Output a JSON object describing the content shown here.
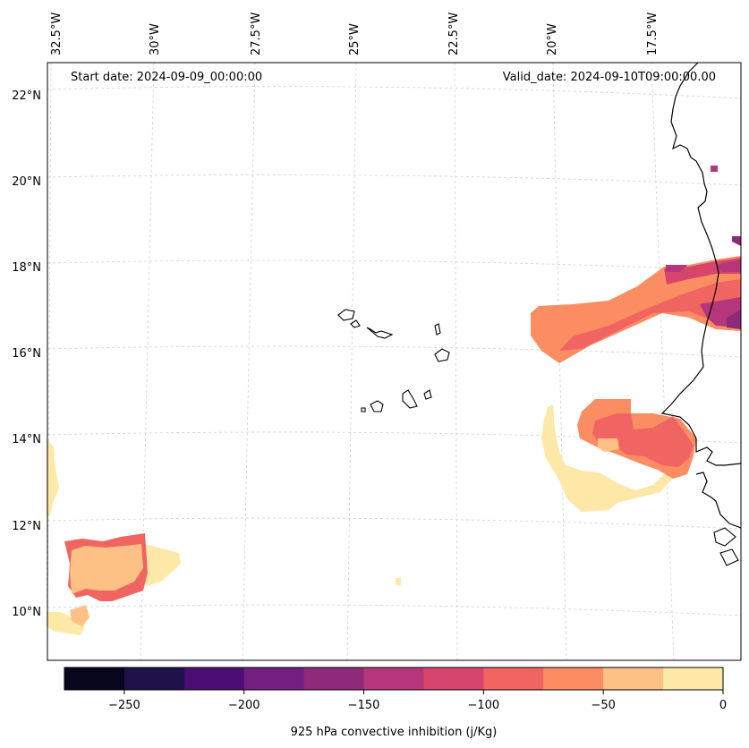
{
  "annotations": {
    "start_date": "Start date: 2024-09-09_00:00:00",
    "valid_date": "Valid_date: 2024-09-10T09:00:00.00"
  },
  "lon_labels": [
    "32.5°W",
    "30°W",
    "27.5°W",
    "25°W",
    "22.5°W",
    "20°W",
    "17.5°W"
  ],
  "lat_labels": [
    "22°N",
    "20°N",
    "18°N",
    "16°N",
    "14°N",
    "12°N",
    "10°N"
  ],
  "colorbar": {
    "label": "925 hPa convective inhibition (j/Kg)",
    "tick_labels": [
      "−250",
      "−200",
      "−150",
      "−100",
      "−50",
      "0"
    ],
    "tick_values": [
      -250,
      -200,
      -150,
      -100,
      -50,
      0
    ],
    "min": -275,
    "max": 0,
    "step": 25,
    "colors": [
      "#07061c",
      "#1f1147",
      "#4b0f73",
      "#721f81",
      "#8f2a7b",
      "#b5367a",
      "#d6456c",
      "#f06461",
      "#fb8d63",
      "#fec185",
      "#fde8a7"
    ]
  },
  "chart_data": {
    "type": "map",
    "variable": "925 hPa convective inhibition",
    "units": "j/Kg",
    "lon_range": [
      -33,
      -15.3
    ],
    "lat_range": [
      9,
      22.8
    ],
    "filled_regions": [
      {
        "name": "mauritania-senegal-band",
        "level_range": [
          -150,
          0
        ]
      },
      {
        "name": "gambia-guinea-arc",
        "level_range": [
          -100,
          0
        ]
      },
      {
        "name": "western-low-patch",
        "level_range": [
          -75,
          0
        ]
      },
      {
        "name": "western-edge-strip",
        "level_range": [
          -25,
          0
        ]
      }
    ]
  }
}
